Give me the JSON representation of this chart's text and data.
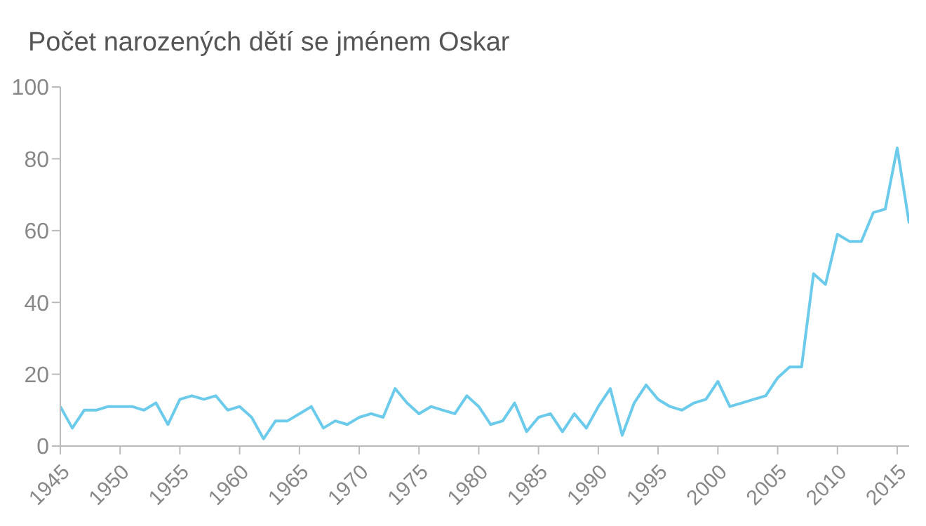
{
  "chart_data": {
    "type": "line",
    "title": "Počet narozených dětí se jménem Oskar",
    "x": [
      1945,
      1946,
      1947,
      1948,
      1949,
      1950,
      1951,
      1952,
      1953,
      1954,
      1955,
      1956,
      1957,
      1958,
      1959,
      1960,
      1961,
      1962,
      1963,
      1964,
      1965,
      1966,
      1967,
      1968,
      1969,
      1970,
      1971,
      1972,
      1973,
      1974,
      1975,
      1976,
      1977,
      1978,
      1979,
      1980,
      1981,
      1982,
      1983,
      1984,
      1985,
      1986,
      1987,
      1988,
      1989,
      1990,
      1991,
      1992,
      1993,
      1994,
      1995,
      1996,
      1997,
      1998,
      1999,
      2000,
      2001,
      2002,
      2003,
      2004,
      2005,
      2006,
      2007,
      2008,
      2009,
      2010,
      2011,
      2012,
      2013,
      2014,
      2015,
      2016
    ],
    "series": [
      {
        "color": "#6ccbeb",
        "values": [
          11,
          5,
          10,
          10,
          11,
          11,
          11,
          10,
          12,
          6,
          13,
          14,
          13,
          14,
          10,
          11,
          8,
          2,
          7,
          7,
          9,
          11,
          5,
          7,
          6,
          8,
          9,
          8,
          16,
          12,
          9,
          11,
          10,
          9,
          14,
          11,
          6,
          7,
          12,
          4,
          8,
          9,
          4,
          9,
          5,
          11,
          16,
          3,
          12,
          17,
          13,
          11,
          10,
          12,
          13,
          18,
          11,
          12,
          13,
          14,
          19,
          22,
          22,
          48,
          45,
          59,
          57,
          57,
          65,
          66,
          83,
          62
        ]
      }
    ],
    "xlim": [
      1945,
      2016
    ],
    "xticks": [
      1945,
      1950,
      1955,
      1960,
      1965,
      1970,
      1975,
      1980,
      1985,
      1990,
      1995,
      2000,
      2005,
      2010,
      2015
    ],
    "ylim": [
      0,
      100
    ],
    "yticks": [
      0,
      20,
      40,
      60,
      80,
      100
    ],
    "grid": false,
    "legend": false,
    "marker": "none",
    "line_style": "solid"
  }
}
